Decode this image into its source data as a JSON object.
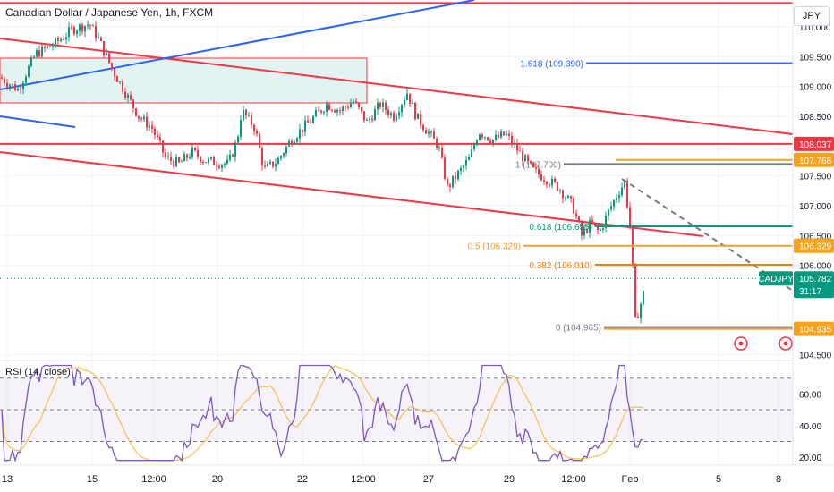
{
  "header": {
    "title": "Canadian Dollar / Japanese Yen, 1h, FXCM",
    "currency": "JPY"
  },
  "rsi": {
    "label": "RSI (14, close)"
  },
  "chart_data": {
    "type": "candlestick",
    "symbol": "CADJPY",
    "y_ticks": [
      "110.000",
      "109.500",
      "109.000",
      "108.500",
      "107.500",
      "107.000",
      "106.500",
      "106.000",
      "104.500"
    ],
    "x_ticks": [
      "13",
      "15",
      "12:00",
      "20",
      "22",
      "12:00",
      "27",
      "29",
      "12:00",
      "Feb",
      "5",
      "8"
    ],
    "rsi_ticks": [
      "60.00",
      "40.00",
      "20.00"
    ],
    "ylim": [
      104.45,
      110.45
    ],
    "rsi_ylim": [
      15,
      80
    ],
    "rsi_bands": [
      70,
      50,
      30
    ],
    "fib_levels": [
      {
        "label": "1.618 (109.390)",
        "value": 109.39,
        "color": "#2962ff"
      },
      {
        "label": "1 (107.700)",
        "value": 107.7,
        "color": "#787b86"
      },
      {
        "label": "0.618 (106.655)",
        "value": 106.655,
        "color": "#089981"
      },
      {
        "label": "0.5 (106.329)",
        "value": 106.329,
        "color": "#f0a030"
      },
      {
        "label": "0.382 (106.010)",
        "value": 106.01,
        "color": "#f57c00"
      },
      {
        "label": "0 (104.965)",
        "value": 104.965,
        "color": "#787b86"
      }
    ],
    "price_tags": [
      {
        "value": 108.037,
        "label": "108.037",
        "bg": "#f23645"
      },
      {
        "value": 107.768,
        "label": "107.768",
        "bg": "#f7a21b"
      },
      {
        "value": 106.329,
        "label": "106.329",
        "bg": "#f7a21b"
      },
      {
        "value": 105.782,
        "label": "105.782",
        "bg": "#089981",
        "symbol": "CADJPY",
        "timer": "31:17"
      },
      {
        "value": 104.935,
        "label": "104.935",
        "bg": "#f7a21b"
      }
    ],
    "horizontal_lines": [
      {
        "value": 110.4,
        "color": "#f23645"
      },
      {
        "value": 108.037,
        "color": "#f23645"
      }
    ],
    "colors": {
      "up": "#089981",
      "down": "#f23645",
      "rsi": "#7e57c2",
      "rsi_ma": "#f5c35b",
      "grid": "#f0f3fa"
    }
  }
}
